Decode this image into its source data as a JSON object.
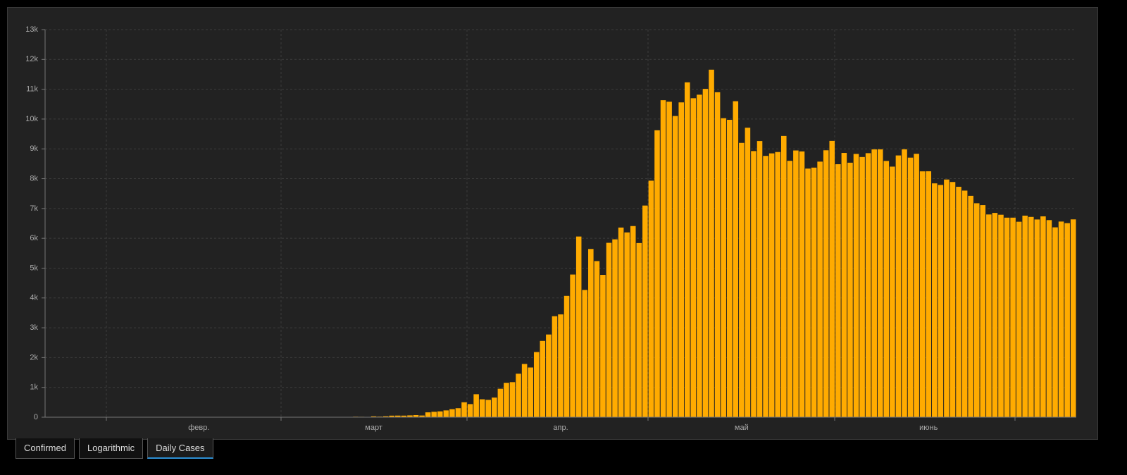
{
  "chart_data": {
    "type": "bar",
    "color": "#ffab00",
    "ylim": [
      0,
      13000
    ],
    "yticks": [
      0,
      {
        "value": 1000,
        "label": "1k"
      },
      {
        "value": 2000,
        "label": "2k"
      },
      {
        "value": 3000,
        "label": "3k"
      },
      {
        "value": 4000,
        "label": "4k"
      },
      {
        "value": 5000,
        "label": "5k"
      },
      {
        "value": 6000,
        "label": "6k"
      },
      {
        "value": 7000,
        "label": "7k"
      },
      {
        "value": 8000,
        "label": "8k"
      },
      {
        "value": 9000,
        "label": "9k"
      },
      {
        "value": 10000,
        "label": "10k"
      },
      {
        "value": 11000,
        "label": "11k"
      },
      {
        "value": 12000,
        "label": "12k"
      },
      {
        "value": 13000,
        "label": "13k"
      }
    ],
    "grid": true,
    "categories": [
      null,
      null,
      null,
      null,
      null,
      null,
      null,
      null,
      null,
      null,
      null,
      null,
      null,
      null,
      null,
      null,
      null,
      null,
      null,
      null,
      null,
      null,
      null,
      null,
      null,
      "февр.",
      null,
      null,
      null,
      null,
      null,
      null,
      null,
      null,
      null,
      null,
      null,
      null,
      null,
      null,
      null,
      null,
      null,
      null,
      null,
      null,
      null,
      null,
      null,
      null,
      null,
      null,
      null,
      null,
      "март",
      null,
      null,
      null,
      null,
      null,
      null,
      null,
      null,
      null,
      null,
      null,
      null,
      null,
      null,
      null,
      null,
      null,
      null,
      null,
      null,
      null,
      null,
      null,
      null,
      null,
      null,
      null,
      null,
      null,
      null,
      "апр.",
      null,
      null,
      null,
      null,
      null,
      null,
      null,
      null,
      null,
      null,
      null,
      null,
      null,
      null,
      null,
      null,
      null,
      null,
      null,
      null,
      null,
      null,
      null,
      null,
      null,
      null,
      null,
      null,
      null,
      "май",
      null,
      null,
      null,
      null,
      null,
      null,
      null,
      null,
      null,
      null,
      null,
      null,
      null,
      null,
      null,
      null,
      null,
      null,
      null,
      null,
      null,
      null,
      null,
      null,
      null,
      null,
      null,
      null,
      null,
      null,
      "июнь",
      null,
      null,
      null,
      null,
      null,
      null,
      null,
      null,
      null,
      null,
      null,
      null,
      null,
      null,
      null,
      null,
      null,
      null,
      null,
      null,
      null,
      null,
      null,
      null
    ],
    "values": [
      0,
      0,
      0,
      0,
      0,
      0,
      0,
      0,
      0,
      2,
      0,
      0,
      0,
      0,
      0,
      0,
      0,
      0,
      0,
      0,
      0,
      0,
      0,
      0,
      0,
      0,
      0,
      0,
      0,
      0,
      0,
      0,
      0,
      0,
      0,
      0,
      0,
      0,
      0,
      0,
      1,
      0,
      0,
      1,
      0,
      3,
      0,
      3,
      0,
      8,
      6,
      17,
      14,
      4,
      30,
      21,
      33,
      52,
      54,
      53,
      61,
      71,
      57,
      163,
      182,
      196,
      228,
      270,
      302,
      501,
      440,
      771,
      601,
      582,
      658,
      954,
      1154,
      1175,
      1459,
      1786,
      1667,
      2186,
      2558,
      2774,
      3388,
      3448,
      4070,
      4785,
      6060,
      4268,
      5642,
      5236,
      4774,
      5849,
      5966,
      6361,
      6198,
      6411,
      5841,
      7099,
      7933,
      9623,
      10633,
      10581,
      10102,
      10559,
      11231,
      10699,
      10817,
      11012,
      11656,
      10899,
      10028,
      9974,
      10598,
      9200,
      9709,
      8926,
      9263,
      8764,
      8849,
      8894,
      9434,
      8599,
      8946,
      8915,
      8338,
      8371,
      8572,
      8952,
      9268,
      8485,
      8863,
      8536,
      8831,
      8726,
      8855,
      8984,
      8985,
      8595,
      8404,
      8779,
      8987,
      8706,
      8835,
      8246,
      8248,
      7843,
      7790,
      7972,
      7889,
      7728,
      7600,
      7425,
      7176,
      7113,
      6800,
      6852,
      6791,
      6693,
      6693,
      6556,
      6760,
      6718,
      6632,
      6736,
      6611,
      6368,
      6562,
      6509,
      6635
    ]
  },
  "tabs": [
    "Confirmed",
    "Logarithmic",
    "Daily Cases"
  ]
}
